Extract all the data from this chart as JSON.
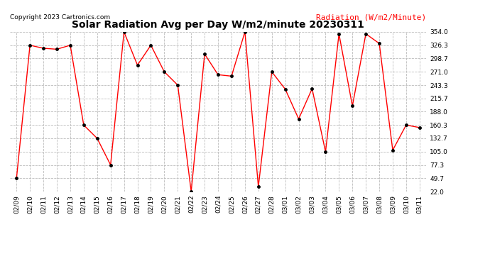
{
  "title": "Solar Radiation Avg per Day W/m2/minute 20230311",
  "copyright": "Copyright 2023 Cartronics.com",
  "legend_label": "Radiation (W/m2/Minute)",
  "dates": [
    "02/09",
    "02/10",
    "02/11",
    "02/12",
    "02/13",
    "02/14",
    "02/15",
    "02/16",
    "02/17",
    "02/18",
    "02/19",
    "02/20",
    "02/21",
    "02/22",
    "02/23",
    "02/24",
    "02/25",
    "02/26",
    "02/27",
    "02/28",
    "03/01",
    "03/02",
    "03/03",
    "03/04",
    "03/05",
    "03/06",
    "03/07",
    "03/08",
    "03/09",
    "03/10",
    "03/11"
  ],
  "values": [
    49.7,
    326.3,
    320.0,
    318.0,
    326.3,
    160.3,
    132.7,
    77.3,
    354.0,
    285.0,
    326.3,
    271.0,
    243.3,
    22.0,
    308.0,
    265.0,
    262.0,
    354.0,
    32.0,
    271.0,
    235.0,
    173.0,
    236.0,
    104.5,
    350.0,
    200.0,
    350.0,
    330.0,
    108.0,
    160.3,
    155.0
  ],
  "ylim": [
    22.0,
    354.0
  ],
  "yticks": [
    22.0,
    49.7,
    77.3,
    105.0,
    132.7,
    160.3,
    188.0,
    215.7,
    243.3,
    271.0,
    298.7,
    326.3,
    354.0
  ],
  "line_color": "red",
  "marker_color": "black",
  "background_color": "#ffffff",
  "grid_color": "#bbbbbb",
  "title_fontsize": 10,
  "tick_fontsize": 6.5,
  "copyright_fontsize": 6.5,
  "legend_fontsize": 8
}
